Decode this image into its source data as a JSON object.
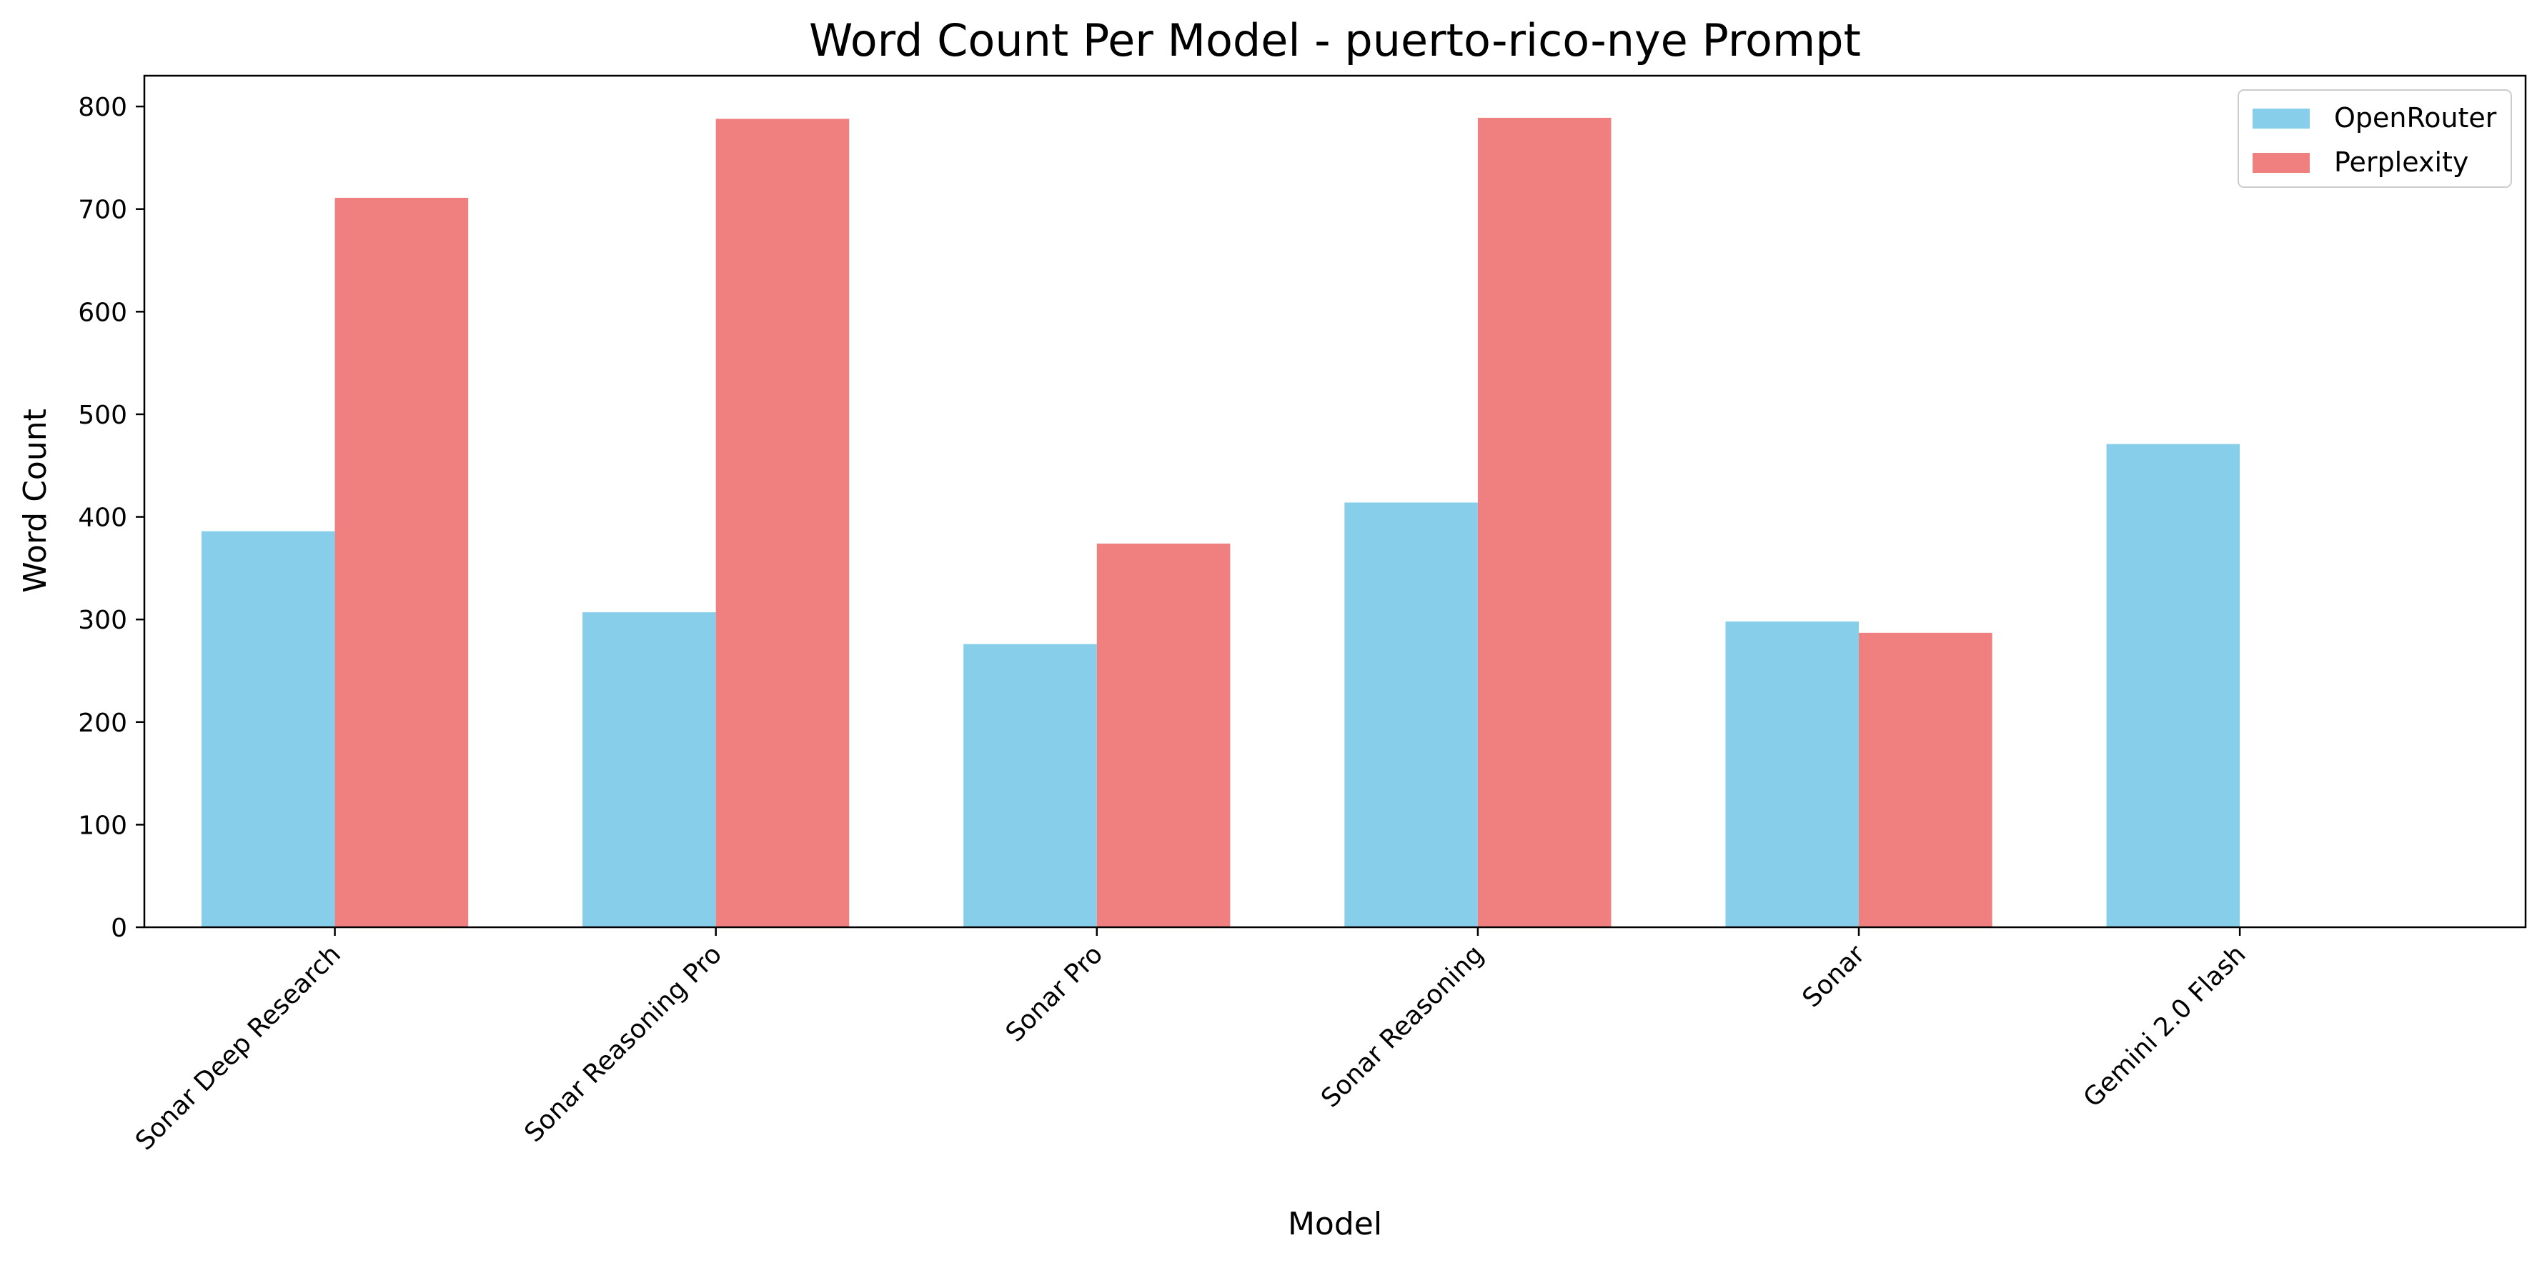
{
  "chart_data": {
    "type": "bar",
    "title": "Word Count Per Model - puerto-rico-nye Prompt",
    "xlabel": "Model",
    "ylabel": "Word Count",
    "categories": [
      "Sonar Deep Research",
      "Sonar Reasoning Pro",
      "Sonar Pro",
      "Sonar Reasoning",
      "Sonar",
      "Gemini 2.0 Flash"
    ],
    "series": [
      {
        "name": "OpenRouter",
        "color": "#87ceeb",
        "values": [
          386,
          307,
          276,
          414,
          298,
          471
        ]
      },
      {
        "name": "Perplexity",
        "color": "#f08080",
        "values": [
          711,
          788,
          374,
          789,
          287,
          0
        ]
      }
    ],
    "ylim": [
      0,
      830
    ],
    "yticks": [
      0,
      100,
      200,
      300,
      400,
      500,
      600,
      700,
      800
    ],
    "grid": false,
    "legend_position": "top-right"
  }
}
